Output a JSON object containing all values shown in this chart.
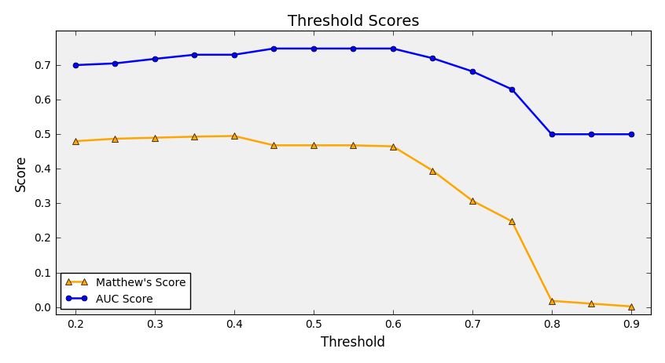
{
  "title": "Threshold Scores",
  "xlabel": "Threshold",
  "ylabel": "Score",
  "thresholds": [
    0.2,
    0.25,
    0.3,
    0.35,
    0.4,
    0.45,
    0.5,
    0.55,
    0.6,
    0.65,
    0.7,
    0.75,
    0.8,
    0.85,
    0.9
  ],
  "auc_scores": [
    0.7,
    0.705,
    0.718,
    0.73,
    0.73,
    0.748,
    0.748,
    0.748,
    0.748,
    0.72,
    0.682,
    0.63,
    0.5,
    0.5,
    0.5
  ],
  "matthew_scores": [
    0.48,
    0.487,
    0.49,
    0.493,
    0.495,
    0.468,
    0.468,
    0.468,
    0.465,
    0.395,
    0.308,
    0.248,
    0.018,
    0.01,
    0.002
  ],
  "auc_color": "#0000ff",
  "matthew_color": "#ffa500",
  "legend_matthew": "Matthew's Score",
  "legend_auc": "AUC Score",
  "xlim": [
    0.175,
    0.925
  ],
  "ylim": [
    -0.02,
    0.8
  ],
  "xticks": [
    0.2,
    0.3,
    0.4,
    0.5,
    0.6,
    0.7,
    0.8,
    0.9
  ],
  "yticks": [
    0.0,
    0.1,
    0.2,
    0.3,
    0.4,
    0.5,
    0.6,
    0.7
  ],
  "figsize": [
    8.46,
    4.64
  ],
  "dpi": 100,
  "bg_color": "#f0f0f0",
  "title_fontsize": 14,
  "label_fontsize": 12,
  "tick_fontsize": 10,
  "legend_fontsize": 10,
  "linewidth": 1.8,
  "marker_size_auc": 5,
  "marker_size_matt": 6
}
